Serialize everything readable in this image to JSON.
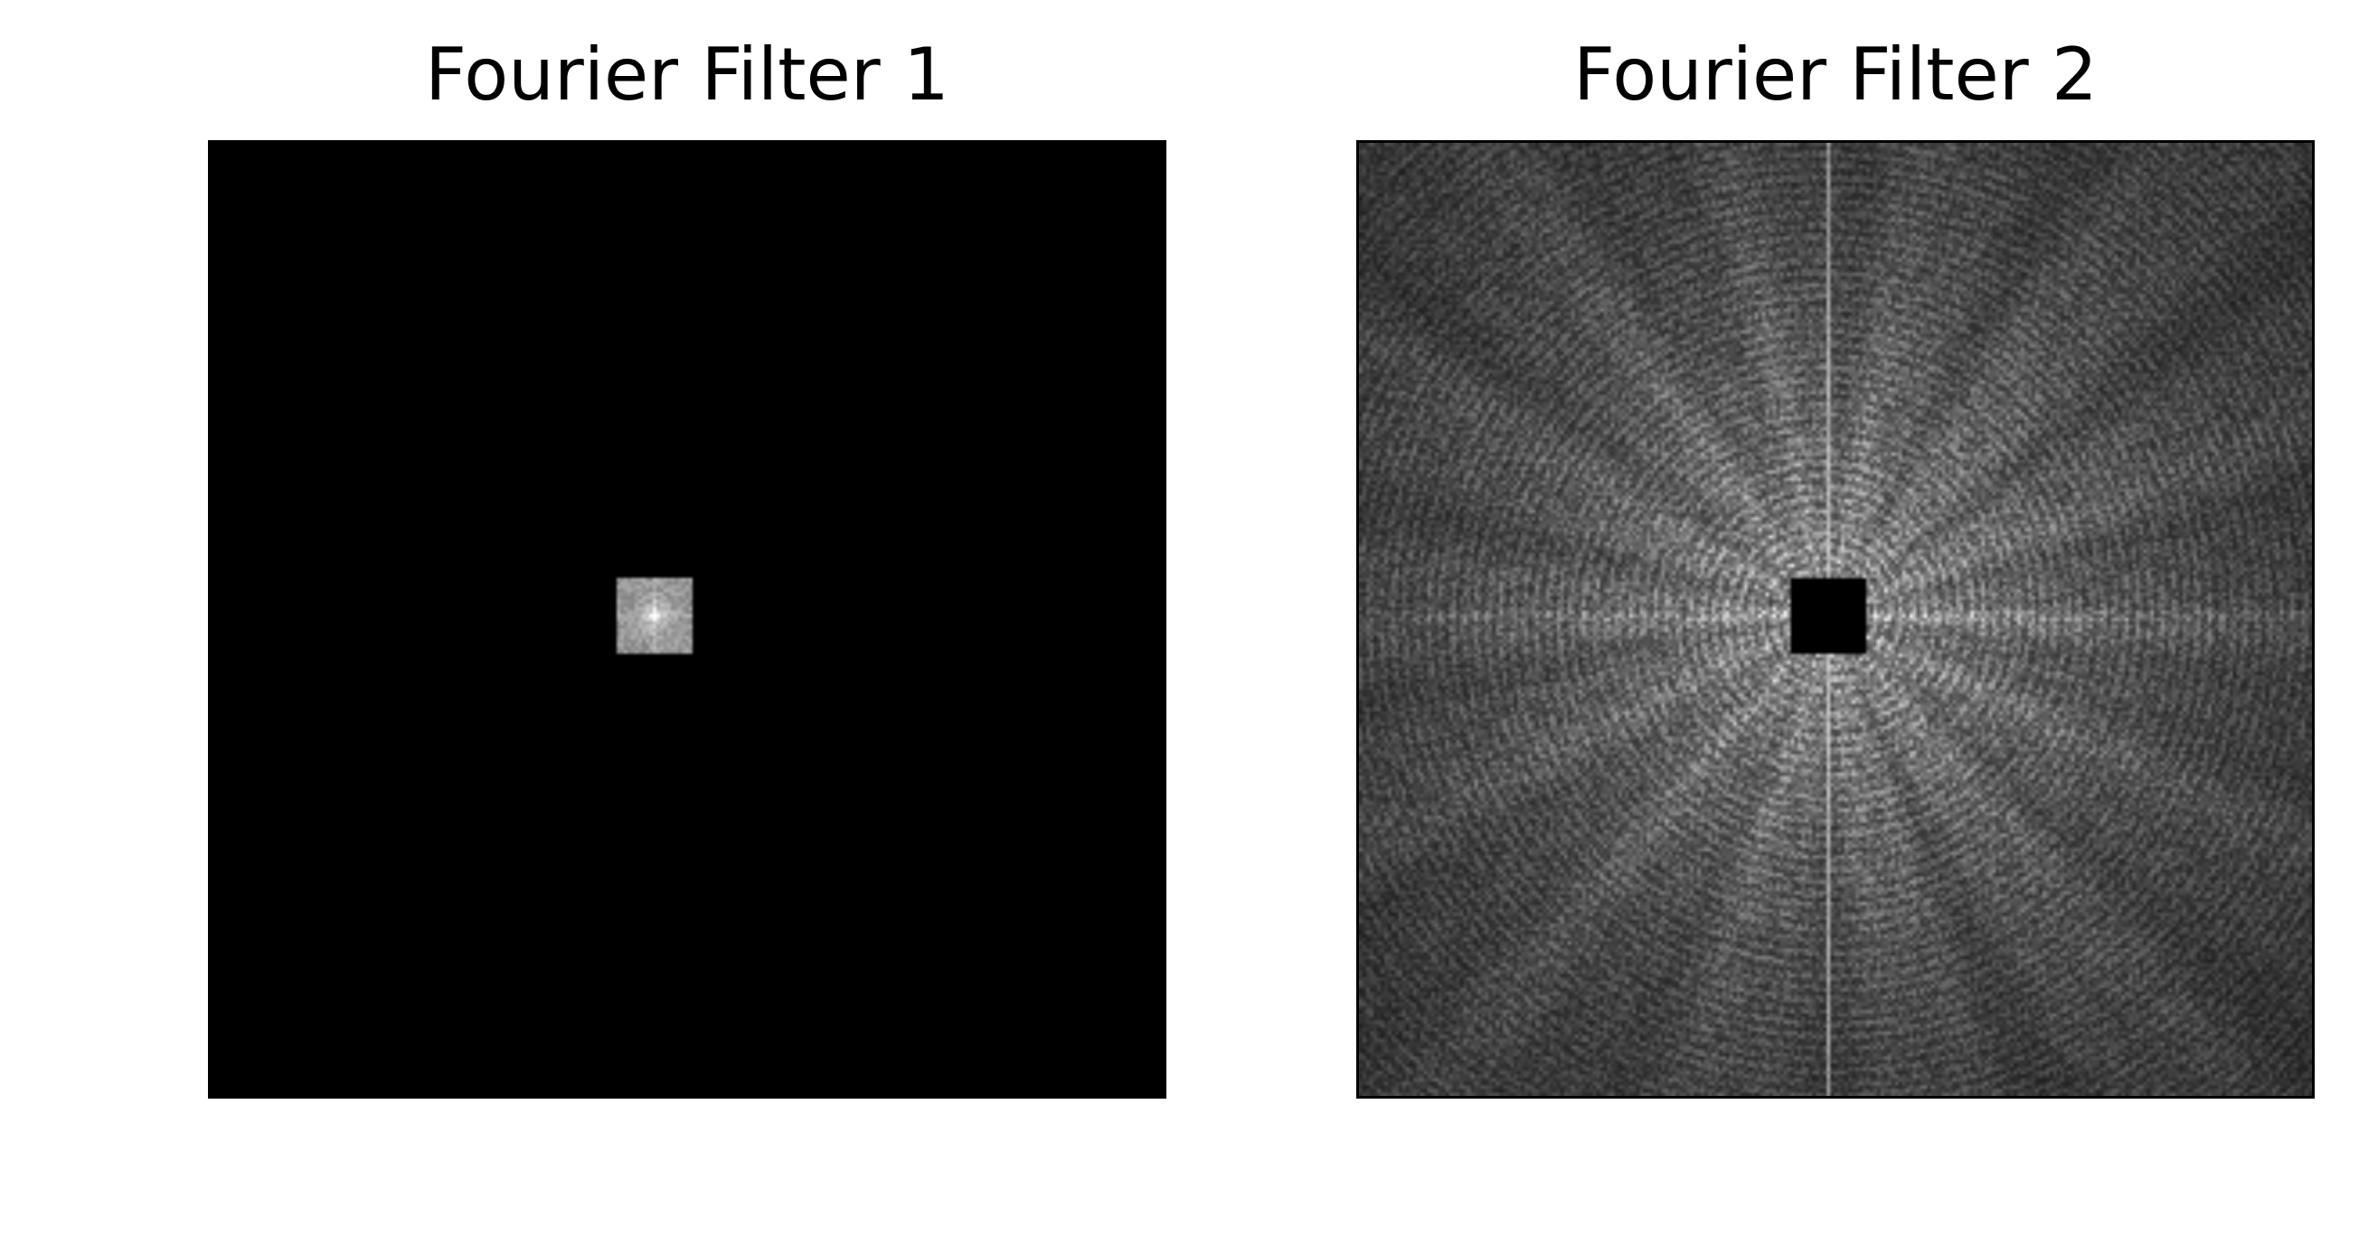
{
  "panels": [
    {
      "title": "Fourier Filter 1",
      "image_description_icon": "low-pass-spectrum-image"
    },
    {
      "title": "Fourier Filter 2",
      "image_description_icon": "high-pass-spectrum-image"
    }
  ],
  "colors": {
    "background": "#ffffff",
    "image_black": "#000000",
    "spectrum_dark": "#2b2b2b",
    "spectrum_bright": "#f0f0f0"
  }
}
